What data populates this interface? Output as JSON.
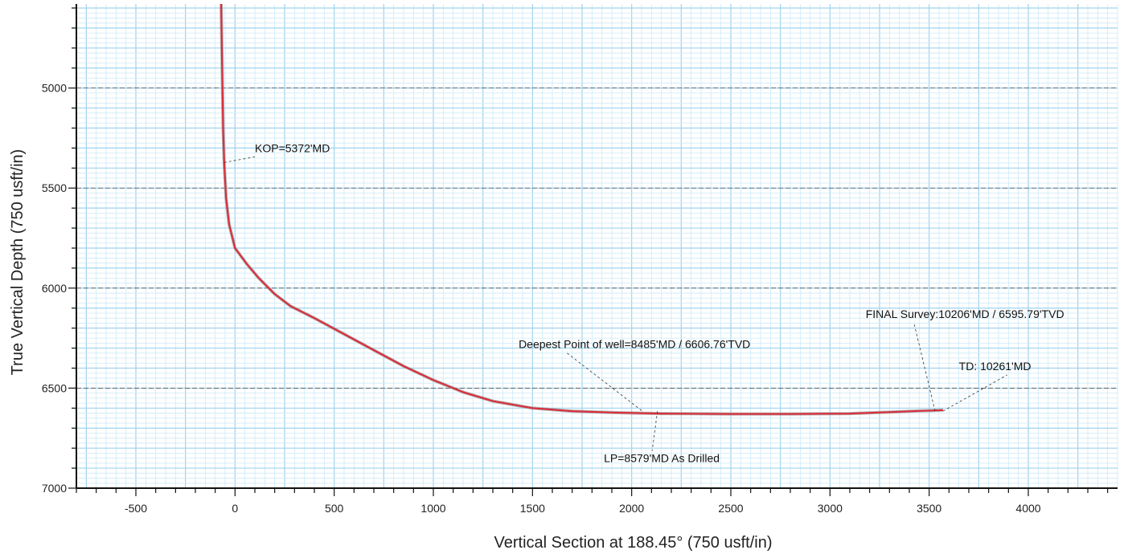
{
  "chart_data": {
    "type": "line",
    "title": "",
    "xlabel": "Vertical Section at 188.45° (750 usft/in)",
    "ylabel": "True Vertical Depth (750 usft/in)",
    "xlim": [
      -800,
      4450
    ],
    "ylim": [
      4580,
      7000
    ],
    "y_inverted": true,
    "grid": true,
    "x_ticks": [
      -500,
      0,
      500,
      1000,
      1500,
      2000,
      2500,
      3000,
      3500,
      4000
    ],
    "y_ticks": [
      5000,
      5500,
      6000,
      6500,
      7000
    ],
    "series": [
      {
        "color": "#d9303c",
        "x": [
          -70,
          -65,
          -60,
          -55,
          -45,
          -30,
          0,
          60,
          120,
          200,
          280,
          400,
          550,
          700,
          850,
          1000,
          1150,
          1300,
          1500,
          1700,
          1900,
          2050,
          2150,
          2300,
          2500,
          2800,
          3100,
          3300,
          3450,
          3520,
          3570
        ],
        "y": [
          4580,
          4900,
          5200,
          5372,
          5550,
          5680,
          5800,
          5880,
          5950,
          6030,
          6090,
          6150,
          6230,
          6310,
          6390,
          6460,
          6520,
          6565,
          6600,
          6615,
          6622,
          6625,
          6627,
          6628,
          6629,
          6629,
          6627,
          6620,
          6614,
          6612,
          6610
        ]
      }
    ],
    "annotations": [
      {
        "text": "KOP=5372'MD",
        "point": [
          -55,
          5372
        ],
        "label_at": [
          100,
          5320
        ]
      },
      {
        "text": "Deepest Point of well=8485'MD / 6606.76'TVD",
        "point": [
          2050,
          6612
        ],
        "label_at": [
          1430,
          6300
        ]
      },
      {
        "text": "LP=8579'MD As Drilled",
        "point": [
          2130,
          6615
        ],
        "label_at": [
          1860,
          6870
        ]
      },
      {
        "text": "FINAL Survey:10206'MD / 6595.79'TVD",
        "point": [
          3530,
          6615
        ],
        "label_at": [
          3180,
          6150
        ]
      },
      {
        "text": "TD: 10261'MD",
        "point": [
          3570,
          6615
        ],
        "label_at": [
          3650,
          6410
        ]
      }
    ]
  }
}
